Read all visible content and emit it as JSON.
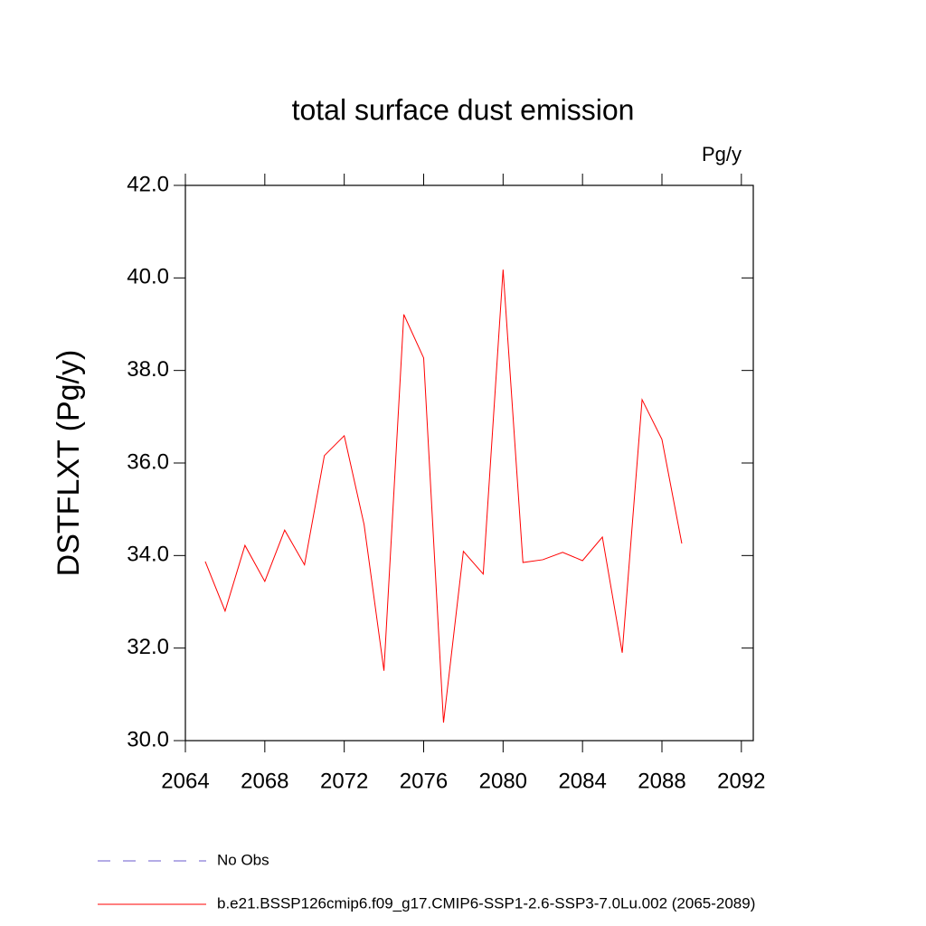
{
  "chart_data": {
    "type": "line",
    "title": "total surface dust emission",
    "units": "Pg/y",
    "y_label": "DSTFLXT  (Pg/y)",
    "x": [
      2065,
      2066,
      2067,
      2068,
      2069,
      2070,
      2071,
      2072,
      2073,
      2074,
      2075,
      2076,
      2077,
      2078,
      2079,
      2080,
      2081,
      2082,
      2083,
      2084,
      2085,
      2086,
      2087,
      2088,
      2089
    ],
    "series": [
      {
        "name": "b.e21.BSSP126cmip6.f09_g17.CMIP6-SSP1-2.6-SSP3-7.0Lu.002 (2065-2089)",
        "color": "#ff0000",
        "values": [
          33.87,
          32.8,
          34.22,
          33.44,
          34.55,
          33.8,
          36.16,
          36.59,
          34.67,
          31.51,
          39.21,
          38.27,
          30.39,
          34.09,
          33.6,
          40.18,
          33.85,
          33.91,
          34.07,
          33.89,
          34.4,
          31.9,
          37.37,
          36.51,
          34.26
        ]
      }
    ],
    "reference_lines": [
      {
        "name": "No Obs",
        "color": "#6a5acd",
        "dashed": true
      }
    ],
    "xlim": [
      2064,
      2092.6
    ],
    "xticks": [
      2064,
      2068,
      2072,
      2076,
      2080,
      2084,
      2088,
      2092
    ],
    "ylim": [
      30,
      42
    ],
    "yticks": [
      {
        "value": 30,
        "label": "30.0"
      },
      {
        "value": 32,
        "label": "32.0"
      },
      {
        "value": 34,
        "label": "34.0"
      },
      {
        "value": 36,
        "label": "36.0"
      },
      {
        "value": 38,
        "label": "38.0"
      },
      {
        "value": 40,
        "label": "40.0"
      },
      {
        "value": 42,
        "label": "42.0"
      }
    ]
  }
}
